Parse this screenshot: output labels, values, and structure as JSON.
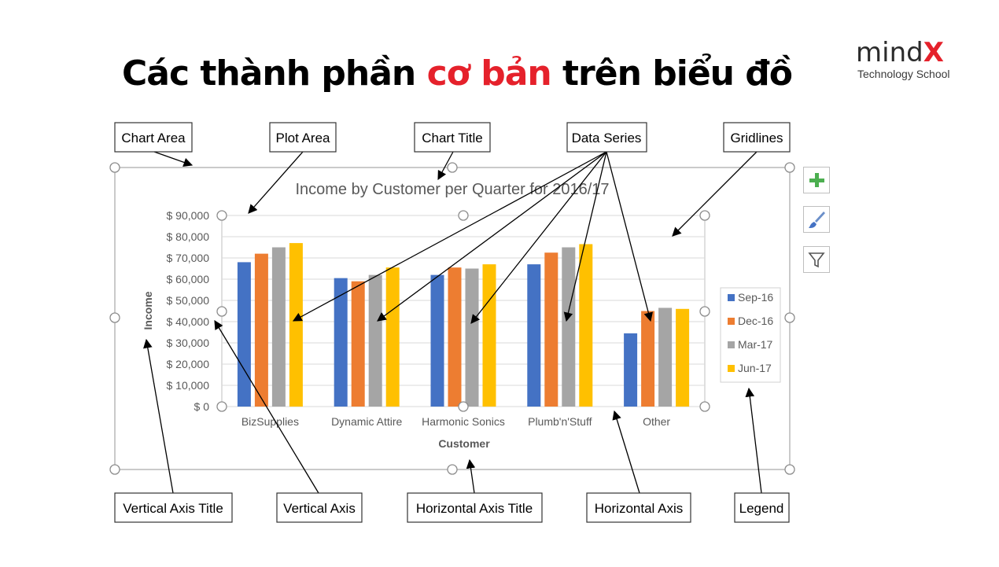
{
  "slide": {
    "title_before": "Các thành phần ",
    "title_highlight": "cơ bản",
    "title_after": " trên biểu đồ",
    "highlight_color": "#e5212b"
  },
  "logo": {
    "word": "mind",
    "x_letter": "X",
    "subtitle": "Technology School"
  },
  "labels": {
    "chart_area": "Chart Area",
    "plot_area": "Plot Area",
    "chart_title": "Chart Title",
    "data_series": "Data Series",
    "gridlines": "Gridlines",
    "vertical_axis_title": "Vertical Axis Title",
    "vertical_axis": "Vertical Axis",
    "horizontal_axis_title": "Horizontal Axis Title",
    "horizontal_axis": "Horizontal Axis",
    "legend": "Legend"
  },
  "tools": [
    "plus-icon",
    "brush-icon",
    "filter-icon"
  ],
  "chart_data": {
    "type": "bar",
    "title": "Income by Customer per Quarter for 2016/17",
    "xlabel": "Customer",
    "ylabel": "Income",
    "ylim": [
      0,
      90000
    ],
    "grid": true,
    "legend_position": "right",
    "ytick_labels": [
      "$ 0",
      "$ 10,000",
      "$ 20,000",
      "$ 30,000",
      "$ 40,000",
      "$ 50,000",
      "$ 60,000",
      "$ 70,000",
      "$ 80,000",
      "$ 90,000"
    ],
    "ytick_values": [
      0,
      10000,
      20000,
      30000,
      40000,
      50000,
      60000,
      70000,
      80000,
      90000
    ],
    "categories": [
      "BizSupplies",
      "Dynamic Attire",
      "Harmonic Sonics",
      "Plumb'n'Stuff",
      "Other"
    ],
    "series": [
      {
        "name": "Sep-16",
        "color": "#4472c4",
        "values": [
          68000,
          60500,
          62000,
          67000,
          34500
        ]
      },
      {
        "name": "Dec-16",
        "color": "#ed7d31",
        "values": [
          72000,
          59000,
          65500,
          72500,
          45000
        ]
      },
      {
        "name": "Mar-17",
        "color": "#a5a5a5",
        "values": [
          75000,
          62000,
          65000,
          75000,
          46500
        ]
      },
      {
        "name": "Jun-17",
        "color": "#ffc000",
        "values": [
          77000,
          65500,
          67000,
          76500,
          46000
        ]
      }
    ]
  }
}
